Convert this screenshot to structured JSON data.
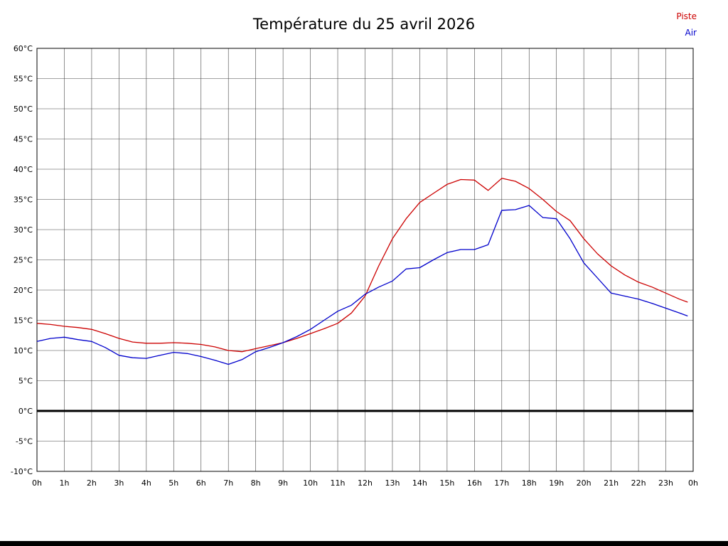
{
  "chart_data": {
    "type": "line",
    "title": "Température du 25 avril 2026",
    "legend_position": "top-right",
    "grid": true,
    "xlim": [
      0,
      24
    ],
    "ylim": [
      -10,
      60
    ],
    "zero_line_value": 0,
    "xtick_hours": [
      0,
      1,
      2,
      3,
      4,
      5,
      6,
      7,
      8,
      9,
      10,
      11,
      12,
      13,
      14,
      15,
      16,
      17,
      18,
      19,
      20,
      21,
      22,
      23,
      24
    ],
    "xtick_labels": [
      "0h",
      "1h",
      "2h",
      "3h",
      "4h",
      "5h",
      "6h",
      "7h",
      "8h",
      "9h",
      "10h",
      "11h",
      "12h",
      "13h",
      "14h",
      "15h",
      "16h",
      "17h",
      "18h",
      "19h",
      "20h",
      "21h",
      "22h",
      "23h",
      "0h"
    ],
    "ytick_values": [
      60,
      55,
      50,
      45,
      40,
      35,
      30,
      25,
      20,
      15,
      10,
      5,
      0,
      -5,
      -10
    ],
    "ytick_labels": [
      "60°C",
      "55°C",
      "50°C",
      "45°C",
      "40°C",
      "35°C",
      "30°C",
      "25°C",
      "20°C",
      "15°C",
      "10°C",
      "5°C",
      "0°C",
      "-5°C",
      "-10°C"
    ],
    "x": [
      0,
      0.5,
      1,
      1.5,
      2,
      2.5,
      3,
      3.5,
      4,
      4.5,
      5,
      5.5,
      6,
      6.5,
      7,
      7.5,
      8,
      8.5,
      9,
      9.5,
      10,
      10.5,
      11,
      11.5,
      12,
      12.5,
      13,
      13.5,
      14,
      14.5,
      15,
      15.5,
      16,
      16.5,
      17,
      17.5,
      18,
      18.5,
      19,
      19.5,
      20,
      20.5,
      21,
      21.5,
      22,
      22.5,
      23,
      23.5,
      23.8
    ],
    "series": [
      {
        "name": "Piste",
        "color": "#cc0000",
        "values": [
          14.5,
          14.3,
          14.0,
          13.8,
          13.5,
          12.8,
          12.0,
          11.4,
          11.2,
          11.2,
          11.3,
          11.2,
          11.0,
          10.6,
          10.0,
          9.8,
          10.3,
          10.8,
          11.3,
          12.0,
          12.8,
          13.6,
          14.5,
          16.2,
          19.0,
          24.0,
          28.5,
          31.8,
          34.5,
          36.0,
          37.5,
          38.3,
          38.2,
          36.5,
          38.5,
          38.0,
          36.8,
          35.0,
          33.0,
          31.5,
          28.5,
          26.0,
          24.0,
          22.5,
          21.3,
          20.5,
          19.5,
          18.5,
          18.0
        ]
      },
      {
        "name": "Air",
        "color": "#0000cc",
        "values": [
          11.5,
          12.0,
          12.2,
          11.8,
          11.5,
          10.5,
          9.2,
          8.8,
          8.7,
          9.2,
          9.7,
          9.5,
          9.0,
          8.4,
          7.7,
          8.5,
          9.8,
          10.5,
          11.3,
          12.3,
          13.5,
          15.0,
          16.5,
          17.5,
          19.3,
          20.5,
          21.5,
          23.5,
          23.7,
          25.0,
          26.2,
          26.7,
          26.7,
          27.5,
          33.2,
          33.3,
          34.0,
          32.0,
          31.8,
          28.5,
          24.5,
          22.0,
          19.5,
          19.0,
          18.5,
          17.8,
          17.0,
          16.2,
          15.7
        ]
      }
    ]
  },
  "legend": {
    "piste_label": "Piste",
    "air_label": "Air"
  },
  "colors": {
    "piste": "#cc0000",
    "air": "#0000cc",
    "grid": "#444444",
    "axis_text": "#000000",
    "background": "#ffffff",
    "bottom_bar": "#000000"
  }
}
